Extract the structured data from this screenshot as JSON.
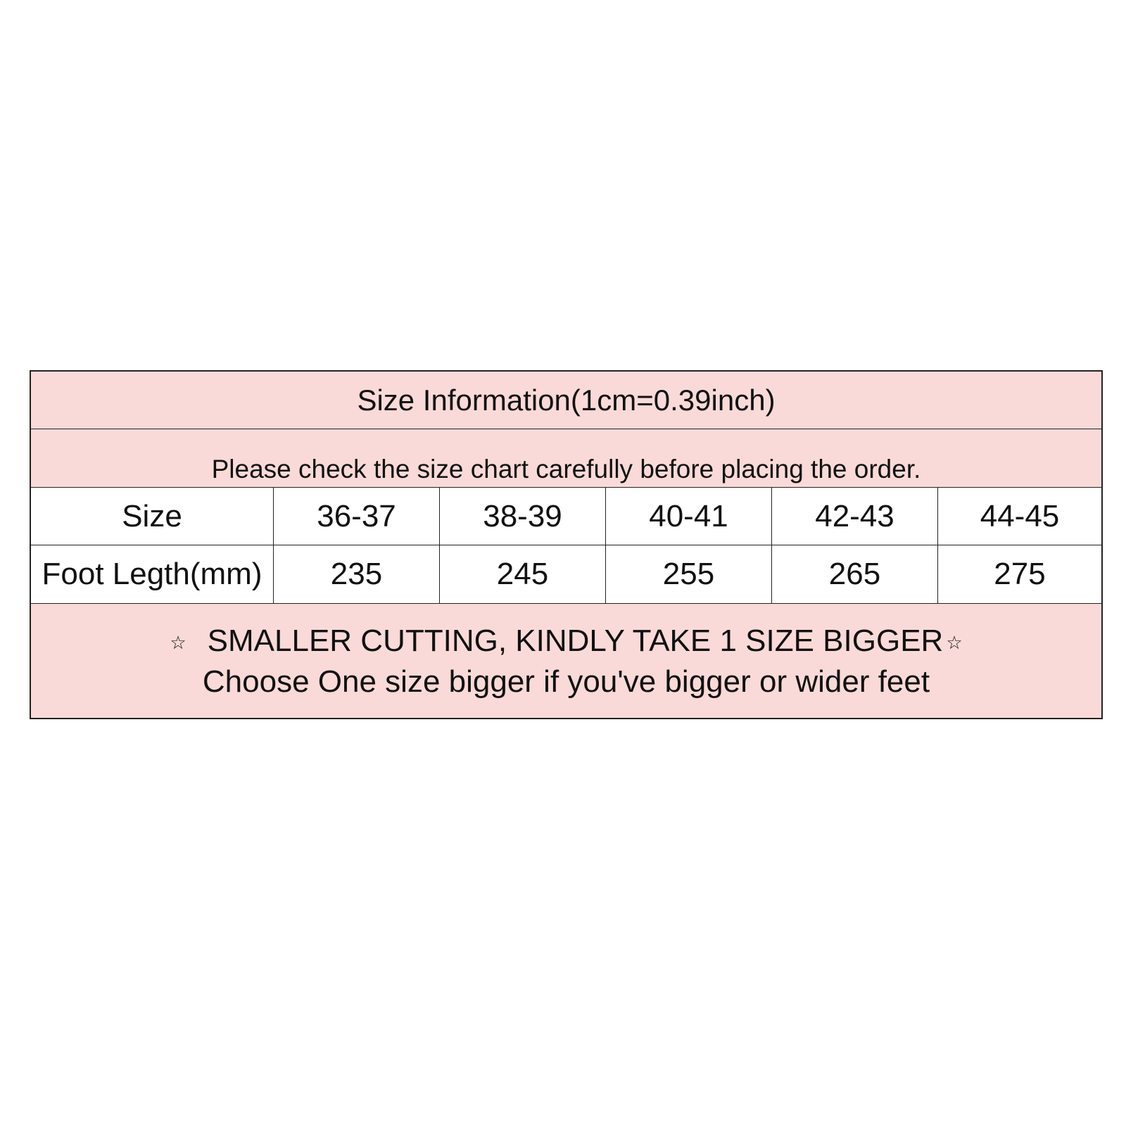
{
  "title": "Size Information(1cm=0.39inch)",
  "subtitle": "Please check the size chart carefully before placing the order.",
  "table": {
    "rows": [
      {
        "label": "Size",
        "values": [
          "36-37",
          "38-39",
          "40-41",
          "42-43",
          "44-45"
        ]
      },
      {
        "label": "Foot Legth(mm)",
        "values": [
          "235",
          "245",
          "255",
          "265",
          "275"
        ]
      }
    ]
  },
  "notes": {
    "star_symbol": "☆",
    "line1": "SMALLER CUTTING, KINDLY TAKE 1 SIZE BIGGER",
    "line2": "Choose One size bigger if you've bigger or wider feet"
  },
  "colors": {
    "header_bg": "#fadad8",
    "border": "#222222"
  }
}
